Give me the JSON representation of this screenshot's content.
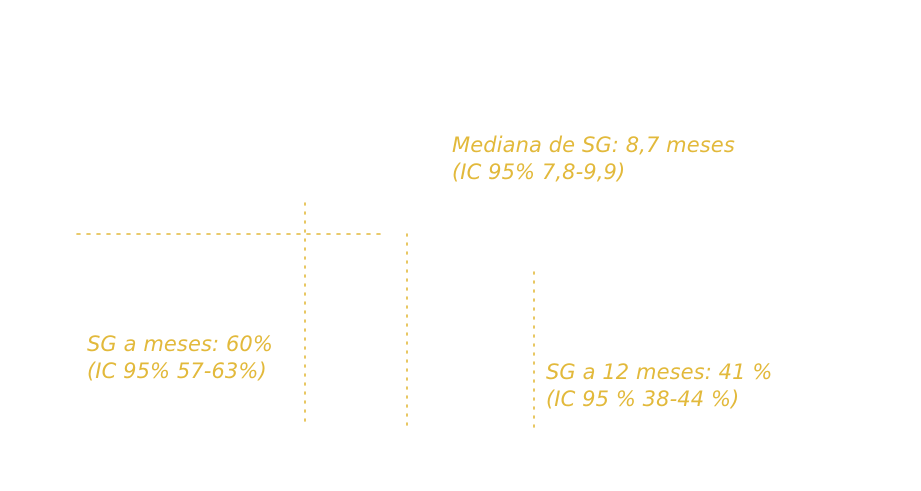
{
  "colors": {
    "accent": "#e2b93b",
    "background": "#ffffff"
  },
  "chart_data": {
    "type": "line",
    "title": "",
    "xlabel": "",
    "ylabel": "",
    "series": [],
    "annotations": [
      {
        "id": "median",
        "line1": "Mediana de SG: 8,7 meses",
        "line2": "(IC 95% 7,8-9,9)",
        "x_value_months": 8.7
      },
      {
        "id": "sg_a_meses",
        "line1": "SG a meses: 60%",
        "line2": "(IC 95% 57-63%)",
        "y_value_percent": 60
      },
      {
        "id": "sg_12",
        "line1": "SG a 12 meses: 41 %",
        "line2": "(IC 95 % 38-44 %)",
        "x_value_months": 12,
        "y_value_percent": 41
      }
    ]
  }
}
